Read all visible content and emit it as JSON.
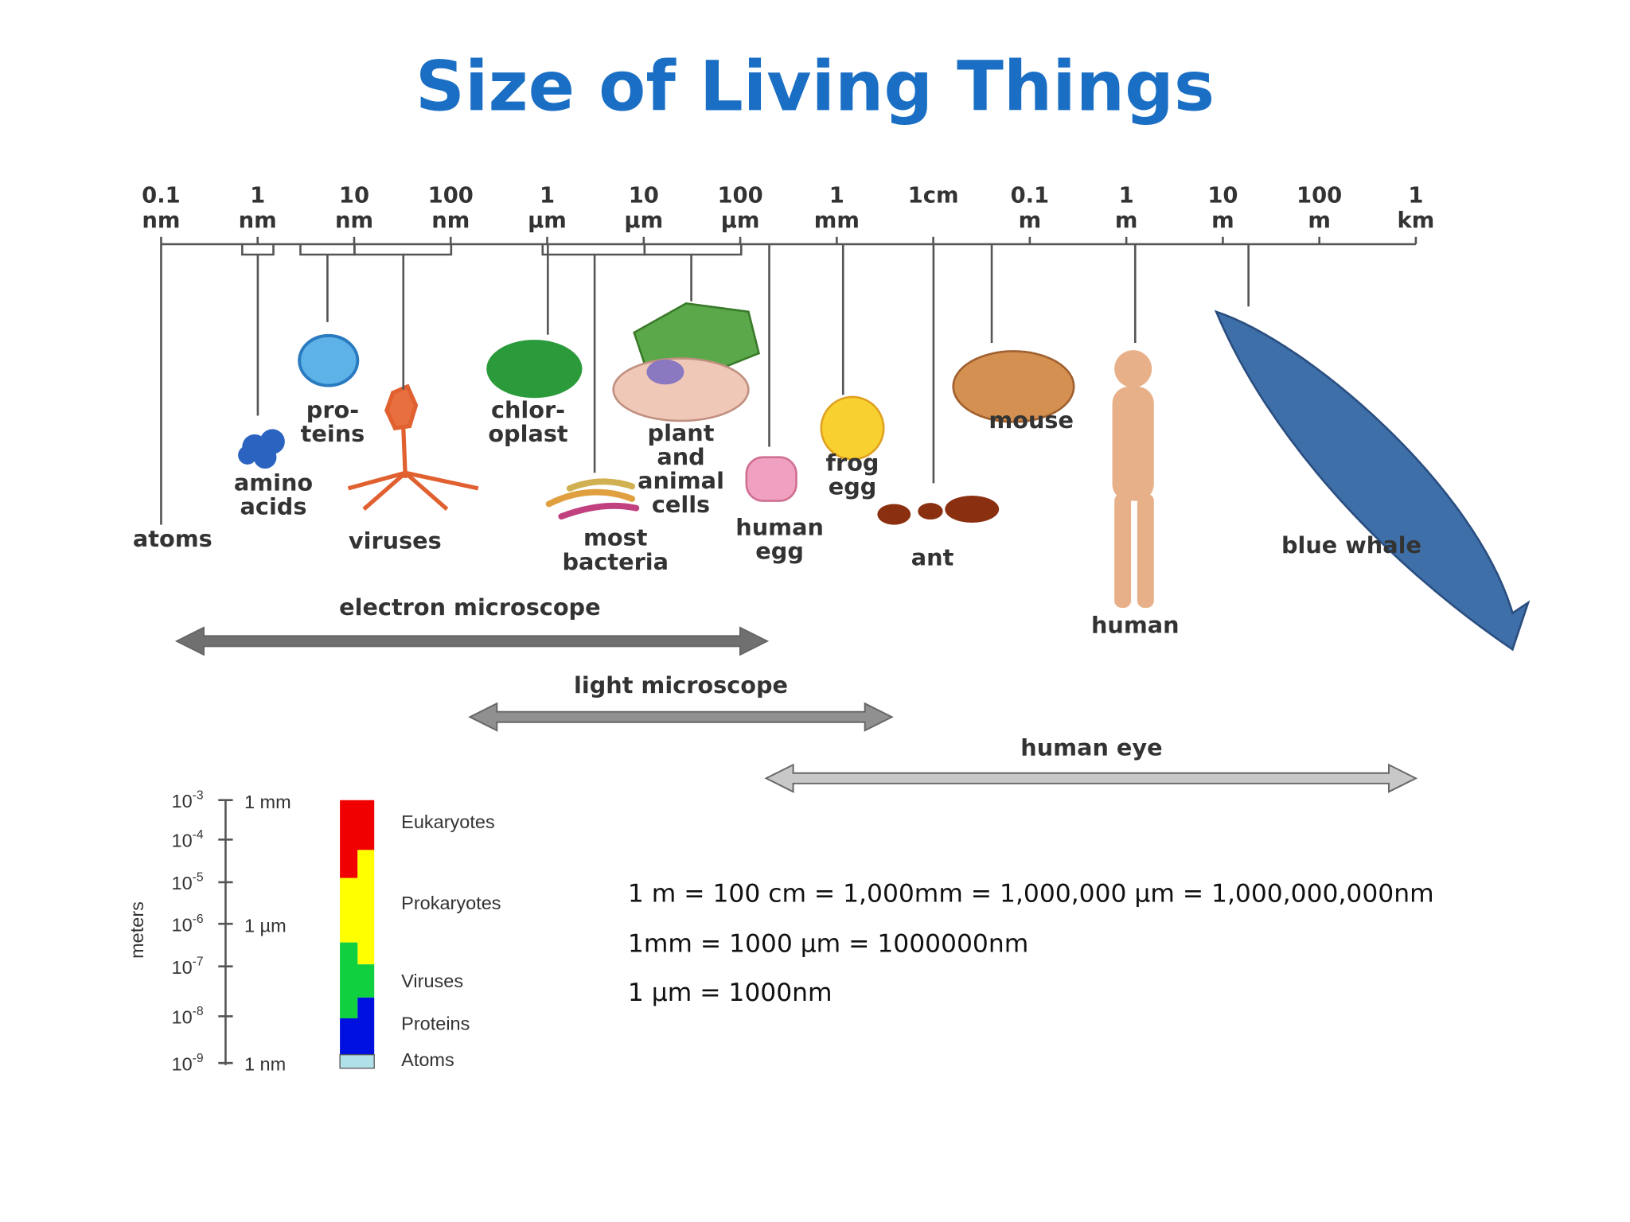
{
  "title": "Size of Living Things",
  "scale": {
    "ticks": [
      {
        "number": "0.1",
        "unit": "nm"
      },
      {
        "number": "1",
        "unit": "nm"
      },
      {
        "number": "10",
        "unit": "nm"
      },
      {
        "number": "100",
        "unit": "nm"
      },
      {
        "number": "1",
        "unit": "µm"
      },
      {
        "number": "10",
        "unit": "µm"
      },
      {
        "number": "100",
        "unit": "µm"
      },
      {
        "number": "1",
        "unit": "mm"
      },
      {
        "number": "1cm"
      },
      {
        "number": "0.1",
        "unit": "m"
      },
      {
        "number": "1",
        "unit": "m"
      },
      {
        "number": "10",
        "unit": "m"
      },
      {
        "number": "100",
        "unit": "m"
      },
      {
        "number": "1",
        "unit": "km"
      }
    ]
  },
  "organisms": [
    {
      "lines": [
        "atoms"
      ]
    },
    {
      "lines": [
        "amino",
        "acids"
      ]
    },
    {
      "lines": [
        "pro-",
        "teins"
      ]
    },
    {
      "lines": [
        "viruses"
      ]
    },
    {
      "lines": [
        "chlor-",
        "oplast"
      ]
    },
    {
      "lines": [
        "most",
        "bacteria"
      ]
    },
    {
      "lines": [
        "plant",
        "and",
        "animal",
        "cells"
      ]
    },
    {
      "lines": [
        "human",
        "egg"
      ]
    },
    {
      "lines": [
        "frog",
        "egg"
      ]
    },
    {
      "lines": [
        "ant"
      ]
    },
    {
      "lines": [
        "mouse"
      ]
    },
    {
      "lines": [
        "human"
      ]
    },
    {
      "lines": [
        "blue whale"
      ]
    }
  ],
  "ranges": [
    {
      "label": "electron microscope"
    },
    {
      "label": "light microscope"
    },
    {
      "label": "human eye"
    }
  ],
  "inset": {
    "axis_title": "meters",
    "exponent_ticks": [
      {
        "base": "10",
        "exp": "-3"
      },
      {
        "base": "10",
        "exp": "-4"
      },
      {
        "base": "10",
        "exp": "-5"
      },
      {
        "base": "10",
        "exp": "-6"
      },
      {
        "base": "10",
        "exp": "-7"
      },
      {
        "base": "10",
        "exp": "-8"
      },
      {
        "base": "10",
        "exp": "-9"
      }
    ],
    "unit_ticks": [
      "1 mm",
      "1 µm",
      "1 nm"
    ],
    "groups": [
      "Eukaryotes",
      "Prokaryotes",
      "Viruses",
      "Proteins",
      "Atoms"
    ]
  },
  "conversions": [
    "1 m = 100 cm = 1,000mm = 1,000,000 µm = 1,000,000,000nm",
    "1mm = 1000 µm = 1000000nm",
    "1 µm = 1000nm"
  ]
}
